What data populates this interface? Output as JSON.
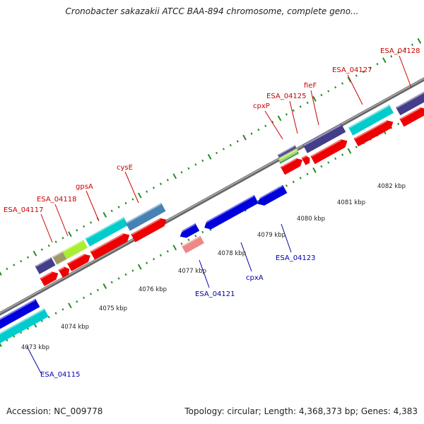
{
  "title": "Cronobacter sakazakii ATCC BAA-894 chromosome, complete geno...",
  "accession": "Accession: NC_009778",
  "topology": "Topology: circular; Length: 4,368,373 bp; Genes: 4,383",
  "scale_labels": [
    "4073 kbp",
    "4074 kbp",
    "4075 kbp",
    "4076 kbp",
    "4077 kbp",
    "4078 kbp",
    "4079 kbp",
    "4080 kbp",
    "4081 kbp",
    "4082 kbp"
  ],
  "gene_labels_top": [
    "ESA_04117",
    "ESA_04118",
    "gpsA",
    "cysE",
    "cpxP",
    "ESA_04125",
    "fieF",
    "ESA_04127",
    "ESA_04128"
  ],
  "gene_labels_bottom": [
    "ESA_04115",
    "ESA_04121",
    "cpxA",
    "ESA_04123"
  ],
  "colors": {
    "forward_label": "#cc0000",
    "reverse_label": "#0000aa",
    "cds_red": "#ee0000",
    "gene_blue": "#0000dd",
    "cyan": "#00cccc",
    "slate": "#443d8a",
    "steel": "#4682b4",
    "olive": "#a09868",
    "lime": "#aaee33",
    "pink": "#ee8888",
    "backbone": "#888888",
    "tick": "#228b22"
  }
}
